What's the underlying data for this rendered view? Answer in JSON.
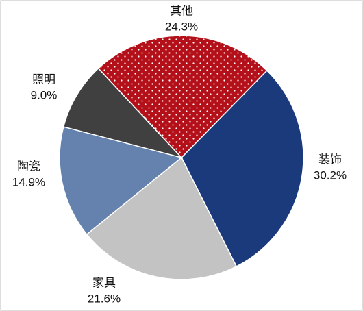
{
  "chart_data": {
    "type": "pie",
    "categories": [
      "装饰",
      "家具",
      "陶瓷",
      "照明",
      "其他"
    ],
    "values": [
      30.2,
      21.6,
      14.9,
      9.0,
      24.3
    ],
    "value_labels": [
      "30.2%",
      "21.6%",
      "14.9%",
      "9.0%",
      "24.3%"
    ],
    "colors": [
      "#1b3a7c",
      "#c3c3c3",
      "#6582ae",
      "#404040",
      "#b3101a"
    ]
  }
}
